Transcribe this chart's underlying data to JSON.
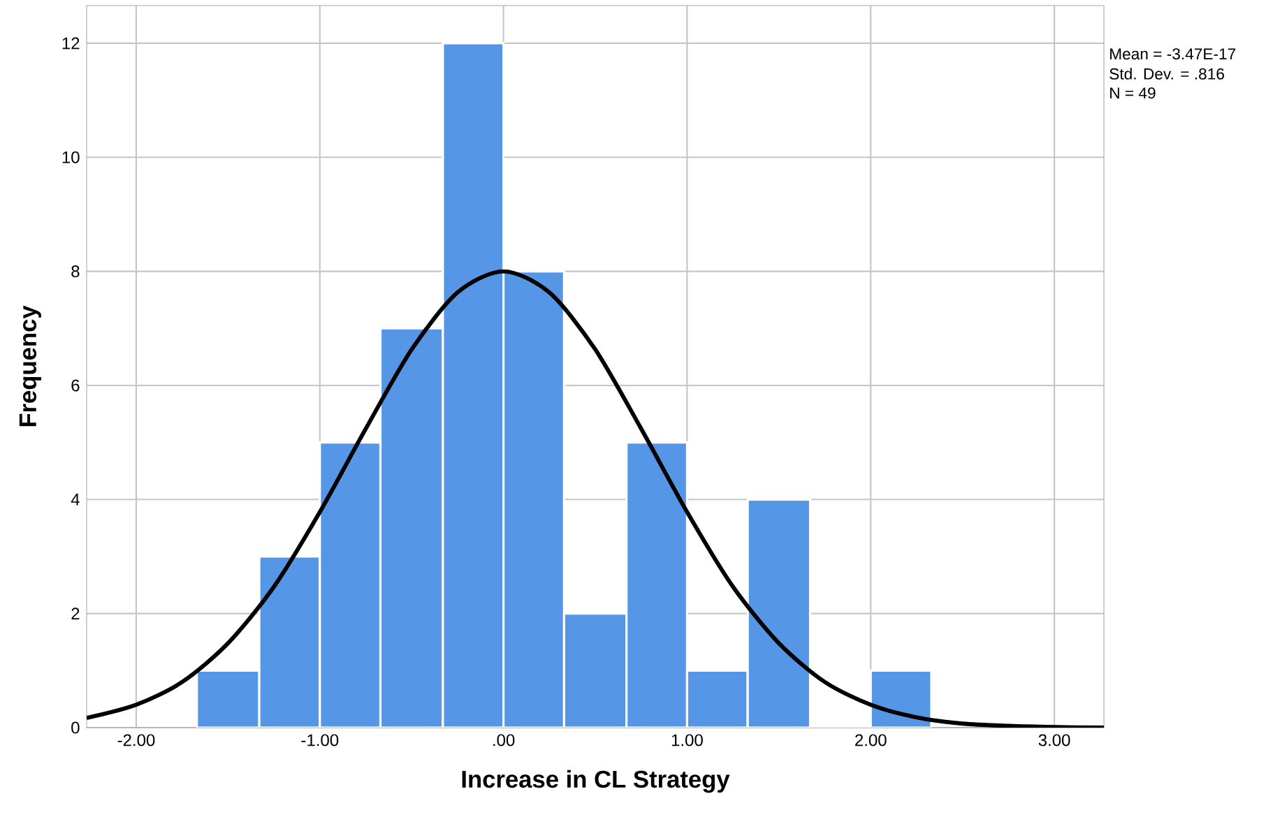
{
  "chart_data": {
    "type": "histogram",
    "xlabel": "Increase in CL Strategy",
    "ylabel": "Frequency",
    "annotations": [
      "Mean = -3.47E-17",
      "Std. Dev. = .816",
      "N = 49"
    ],
    "xlim": [
      -2.27,
      3.27
    ],
    "ylim": [
      0,
      12.66
    ],
    "xticks": [
      {
        "value": -2,
        "label": "-2.00"
      },
      {
        "value": -1,
        "label": "-1.00"
      },
      {
        "value": 0,
        "label": ".00"
      },
      {
        "value": 1,
        "label": "1.00"
      },
      {
        "value": 2,
        "label": "2.00"
      },
      {
        "value": 3,
        "label": "3.00"
      }
    ],
    "yticks": [
      0,
      2,
      4,
      6,
      8,
      10,
      12
    ],
    "grid": true,
    "series": [
      {
        "color": "#5596e6",
        "bins": [
          -1.67,
          -1.33,
          -1,
          -0.67,
          -0.33,
          0,
          0.33,
          0.67,
          1,
          1.33,
          1.67,
          2,
          2.33
        ],
        "values": [
          1,
          3,
          5,
          7,
          12,
          8,
          2,
          5,
          1,
          4,
          0,
          1
        ]
      },
      {
        "type": "line",
        "color": "#000000",
        "x": [
          -2.27,
          -2,
          -1.75,
          -1.5,
          -1.25,
          -1,
          -0.75,
          -0.5,
          -0.25,
          0,
          0.25,
          0.5,
          0.75,
          1,
          1.25,
          1.5,
          1.75,
          2,
          2.25,
          2.5,
          2.75,
          3,
          3.27
        ],
        "values": [
          0.17,
          0.4,
          0.8,
          1.48,
          2.47,
          3.78,
          5.24,
          6.63,
          7.63,
          8,
          7.63,
          6.63,
          5.24,
          3.78,
          2.47,
          1.48,
          0.8,
          0.4,
          0.18,
          0.07,
          0.03,
          0.01,
          0
        ]
      }
    ]
  }
}
